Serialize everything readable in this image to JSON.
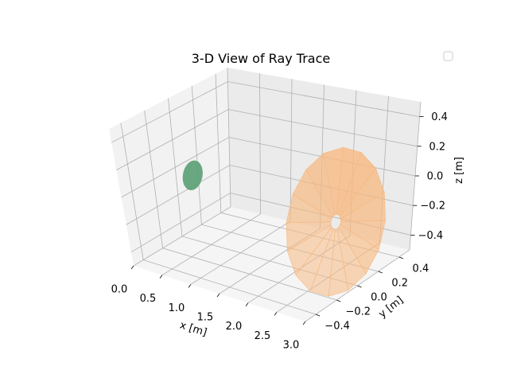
{
  "chart_data": {
    "type": "surface3d",
    "title": "3-D View of Ray Trace",
    "xlabel": "x [m]",
    "ylabel": "y [m]",
    "zlabel": "z [m]",
    "x_ticks": [
      "0.0",
      "0.5",
      "1.0",
      "1.5",
      "2.0",
      "2.5",
      "3.0"
    ],
    "y_ticks": [
      "−0.4",
      "−0.2",
      "0.0",
      "0.2",
      "0.4"
    ],
    "z_ticks": [
      "−0.4",
      "−0.2",
      "0.0",
      "0.2",
      "0.4"
    ],
    "xlim": [
      0,
      3
    ],
    "ylim": [
      -0.5,
      0.5
    ],
    "zlim": [
      -0.5,
      0.5
    ],
    "legend": {
      "position": "top-right",
      "entries": []
    },
    "grid": true,
    "surfaces": [
      {
        "kind": "disk",
        "center_x": 0.4,
        "radius": 0.1,
        "color": "#5a9e74"
      },
      {
        "kind": "annulus",
        "center_x": 2.9,
        "outer_radius": 0.5,
        "inner_radius": 0.05,
        "color": "#f7b981"
      }
    ]
  },
  "colors": {
    "pane_back": "#ebebeb",
    "pane_left": "#f2f2f2",
    "pane_floor": "#f5f5f5",
    "grid": "#b0b0b0",
    "disk": "#5a9e74",
    "annulus": "#f7b981"
  }
}
